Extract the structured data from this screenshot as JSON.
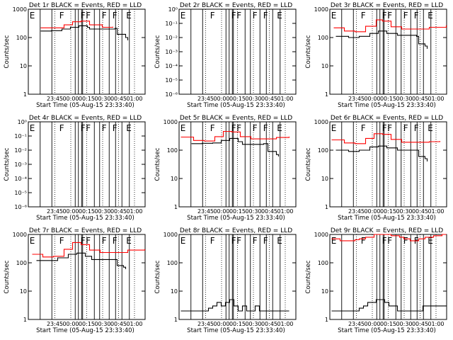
{
  "chart_data": [
    {
      "type": "line",
      "title": "Det 1r BLACK = Events, RED = LLD",
      "xlabel": "Start Time (05-Aug-15 23:33:40)",
      "ylabel": "Counts/sec",
      "log_y": true,
      "ylim": [
        1,
        1000
      ],
      "y_ticks": [
        "1",
        "10",
        "100",
        "1000"
      ],
      "xlim": [
        -13.67,
        96.33
      ],
      "x_ticks": [
        "23:45",
        "00:00",
        "00:15",
        "00:30",
        "00:45",
        "01:00"
      ],
      "event_labels": [
        "E",
        "F",
        "F",
        "F",
        "F",
        "F",
        "E"
      ],
      "series": [
        {
          "color": "#000000",
          "x": [
            -2,
            8,
            18,
            26,
            34,
            42,
            44,
            56,
            68,
            70,
            78,
            80
          ],
          "values": [
            170,
            175,
            200,
            230,
            260,
            230,
            200,
            200,
            210,
            130,
            100,
            80
          ]
        },
        {
          "color": "#ff0000",
          "x": [
            -2,
            10,
            20,
            28,
            36,
            44,
            56,
            66
          ],
          "values": [
            220,
            220,
            280,
            360,
            380,
            280,
            230,
            240
          ]
        }
      ]
    },
    {
      "type": "line",
      "title": "Det 2r BLACK = Events, RED = LLD",
      "xlabel": "Start Time (05-Aug-15 23:33:40)",
      "ylabel": "Counts/sec",
      "log_y": true,
      "ylim": [
        1e-06,
        1.0
      ],
      "y_ticks": [
        "10⁻⁶",
        "10⁻⁵",
        "10⁻⁴",
        "10⁻³",
        "10⁻²",
        "10⁻¹",
        "10⁰"
      ],
      "xlim": [
        -13.67,
        96.33
      ],
      "x_ticks": [
        "23:45",
        "00:00",
        "00:15",
        "00:30",
        "00:45",
        "01:00"
      ],
      "event_labels": [
        "E",
        "F",
        "F",
        "F",
        "F",
        "F",
        "E"
      ],
      "series": []
    },
    {
      "type": "line",
      "title": "Det 3r BLACK = Events, RED = LLD",
      "xlabel": "Start Time (05-Aug-15 23:33:40)",
      "ylabel": "Counts/sec",
      "log_y": true,
      "ylim": [
        1,
        1000
      ],
      "y_ticks": [
        "1",
        "10",
        "100",
        "1000"
      ],
      "xlim": [
        -13.67,
        96.33
      ],
      "x_ticks": [
        "23:45",
        "00:00",
        "00:15",
        "00:30",
        "00:45",
        "01:00"
      ],
      "event_labels": [
        "E",
        "F",
        "F",
        "F",
        "F",
        "F",
        "E"
      ],
      "series": [
        {
          "color": "#000000",
          "x": [
            -8,
            4,
            14,
            24,
            32,
            40,
            50,
            60,
            68,
            70,
            76,
            78
          ],
          "values": [
            110,
            100,
            110,
            140,
            170,
            140,
            120,
            120,
            110,
            60,
            50,
            40
          ]
        },
        {
          "color": "#ff0000",
          "x": [
            -10,
            0,
            10,
            20,
            30,
            36,
            44,
            54,
            66,
            80,
            96
          ],
          "values": [
            220,
            170,
            160,
            250,
            420,
            380,
            240,
            200,
            200,
            230,
            270
          ]
        }
      ]
    },
    {
      "type": "line",
      "title": "Det 4r BLACK = Events, RED = LLD",
      "xlabel": "Start Time (05-Aug-15 23:33:40)",
      "ylabel": "Counts/sec",
      "log_y": true,
      "ylim": [
        1e-06,
        1.0
      ],
      "y_ticks": [
        "10⁻⁶",
        "10⁻⁵",
        "10⁻⁴",
        "10⁻³",
        "10⁻²",
        "10⁻¹",
        "10⁰"
      ],
      "xlim": [
        -13.67,
        96.33
      ],
      "x_ticks": [
        "23:45",
        "00:00",
        "00:15",
        "00:30",
        "00:45",
        "01:00"
      ],
      "event_labels": [
        "E",
        "F",
        "F",
        "F",
        "F",
        "F",
        "E"
      ],
      "series": []
    },
    {
      "type": "line",
      "title": "Det 5r BLACK = Events, RED = LLD",
      "xlabel": "Start Time (05-Aug-15 23:33:40)",
      "ylabel": "Counts/sec",
      "log_y": true,
      "ylim": [
        1,
        1000
      ],
      "y_ticks": [
        "1",
        "10",
        "100",
        "1000"
      ],
      "xlim": [
        -13.67,
        96.33
      ],
      "x_ticks": [
        "23:45",
        "00:00",
        "00:15",
        "00:30",
        "00:45",
        "01:00"
      ],
      "event_labels": [
        "E",
        "F",
        "F",
        "F",
        "F",
        "F",
        "E"
      ],
      "series": [
        {
          "color": "#000000",
          "x": [
            -2,
            8,
            18,
            26,
            34,
            42,
            46,
            56,
            66,
            70,
            78,
            80
          ],
          "values": [
            170,
            175,
            180,
            220,
            260,
            200,
            160,
            160,
            170,
            90,
            70,
            60
          ]
        },
        {
          "color": "#ff0000",
          "x": [
            -12,
            0,
            10,
            20,
            28,
            36,
            44,
            54,
            66,
            78,
            90
          ],
          "values": [
            290,
            220,
            210,
            300,
            460,
            440,
            300,
            250,
            250,
            280,
            300
          ]
        }
      ]
    },
    {
      "type": "line",
      "title": "Det 6r BLACK = Events, RED = LLD",
      "xlabel": "Start Time (05-Aug-15 23:33:40)",
      "ylabel": "Counts/sec",
      "log_y": true,
      "ylim": [
        1,
        1000
      ],
      "y_ticks": [
        "1",
        "10",
        "100",
        "1000"
      ],
      "xlim": [
        -13.67,
        96.33
      ],
      "x_ticks": [
        "23:45",
        "00:00",
        "00:15",
        "00:30",
        "00:45",
        "01:00"
      ],
      "event_labels": [
        "E",
        "F",
        "F",
        "F",
        "F",
        "F",
        "E"
      ],
      "series": [
        {
          "color": "#000000",
          "x": [
            -8,
            4,
            14,
            24,
            32,
            40,
            50,
            62,
            68,
            70,
            76,
            78
          ],
          "values": [
            100,
            90,
            100,
            130,
            140,
            120,
            100,
            100,
            100,
            60,
            50,
            40
          ]
        },
        {
          "color": "#ff0000",
          "x": [
            -12,
            0,
            10,
            20,
            28,
            36,
            44,
            54,
            66,
            80,
            90
          ],
          "values": [
            230,
            180,
            170,
            260,
            380,
            360,
            240,
            190,
            190,
            200,
            210
          ]
        }
      ]
    },
    {
      "type": "line",
      "title": "Det 7r BLACK = Events, RED = LLD",
      "xlabel": "Start Time (05-Aug-15 23:33:40)",
      "ylabel": "Counts/sec",
      "log_y": true,
      "ylim": [
        1,
        1000
      ],
      "y_ticks": [
        "1",
        "10",
        "100",
        "1000"
      ],
      "xlim": [
        -13.67,
        96.33
      ],
      "x_ticks": [
        "23:45",
        "00:00",
        "00:15",
        "00:30",
        "00:45",
        "01:00"
      ],
      "event_labels": [
        "E",
        "F",
        "F",
        "F",
        "F",
        "F",
        "E"
      ],
      "series": [
        {
          "color": "#000000",
          "x": [
            -6,
            4,
            14,
            24,
            32,
            40,
            46,
            56,
            68,
            70,
            76,
            78
          ],
          "values": [
            120,
            120,
            150,
            200,
            220,
            170,
            130,
            130,
            130,
            80,
            70,
            60
          ]
        },
        {
          "color": "#ff0000",
          "x": [
            -10,
            0,
            10,
            20,
            28,
            36,
            44,
            54,
            66,
            80,
            96
          ],
          "values": [
            200,
            160,
            170,
            300,
            520,
            440,
            280,
            230,
            230,
            280,
            300
          ]
        }
      ]
    },
    {
      "type": "line",
      "title": "Det 8r BLACK = Events, RED = LLD",
      "xlabel": "Start Time (05-Aug-15 23:33:40)",
      "ylabel": "Counts/sec",
      "log_y": true,
      "ylim": [
        1,
        1000
      ],
      "y_ticks": [
        "1",
        "10",
        "100",
        "1000"
      ],
      "xlim": [
        -13.67,
        96.33
      ],
      "x_ticks": [
        "23:45",
        "00:00",
        "00:15",
        "00:30",
        "00:45",
        "01:00"
      ],
      "event_labels": [
        "E",
        "F",
        "F",
        "F",
        "F",
        "F",
        "E"
      ],
      "series": [
        {
          "color": "#000000",
          "x": [
            -12,
            0,
            8,
            14,
            18,
            22,
            26,
            30,
            34,
            38,
            42,
            46,
            50,
            54,
            58,
            62,
            66,
            70,
            74,
            78,
            84,
            90
          ],
          "values": [
            2,
            2,
            2,
            2.5,
            3,
            4,
            3,
            4,
            5,
            3,
            2,
            3,
            2,
            2,
            3,
            2,
            2,
            2,
            2,
            2,
            2,
            2
          ]
        },
        {
          "color": "#ff0000",
          "x": [],
          "values": []
        }
      ]
    },
    {
      "type": "line",
      "title": "Det 9r BLACK = Events, RED = LLD",
      "xlabel": "Start Time (05-Aug-15 23:33:40)",
      "ylabel": "Counts/sec",
      "log_y": true,
      "ylim": [
        1,
        1000
      ],
      "y_ticks": [
        "1",
        "10",
        "100",
        "1000"
      ],
      "xlim": [
        -13.67,
        96.33
      ],
      "x_ticks": [
        "23:45",
        "00:00",
        "00:15",
        "00:30",
        "00:45",
        "01:00"
      ],
      "event_labels": [
        "E",
        "F",
        "F",
        "F",
        "F",
        "F",
        "E"
      ],
      "series": [
        {
          "color": "#000000",
          "x": [
            -12,
            0,
            8,
            14,
            18,
            22,
            26,
            30,
            34,
            38,
            42,
            46,
            50,
            54,
            58,
            62,
            66,
            70,
            74,
            78,
            84,
            96
          ],
          "values": [
            2,
            2,
            2,
            2.5,
            3,
            4,
            4,
            5,
            5,
            4,
            3,
            3,
            2,
            2,
            2,
            2,
            2,
            2,
            3,
            3,
            3,
            3
          ]
        },
        {
          "color": "#ff0000",
          "x": [
            -12,
            -4,
            4,
            10,
            14,
            20,
            28,
            36,
            44,
            52,
            56,
            62,
            70,
            76,
            84,
            92,
            96
          ],
          "values": [
            700,
            600,
            600,
            650,
            700,
            800,
            1000,
            1000,
            900,
            800,
            700,
            600,
            700,
            800,
            900,
            1000,
            1000
          ]
        }
      ]
    }
  ]
}
